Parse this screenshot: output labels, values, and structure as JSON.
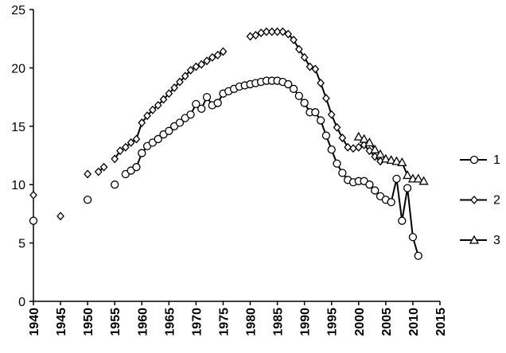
{
  "chart_data": {
    "type": "line",
    "x": [
      1940,
      1941,
      1942,
      1943,
      1944,
      1945,
      1946,
      1947,
      1948,
      1949,
      1950,
      1951,
      1952,
      1953,
      1954,
      1955,
      1956,
      1957,
      1958,
      1959,
      1960,
      1961,
      1962,
      1963,
      1964,
      1965,
      1966,
      1967,
      1968,
      1969,
      1970,
      1971,
      1972,
      1973,
      1974,
      1975,
      1976,
      1977,
      1978,
      1979,
      1980,
      1981,
      1982,
      1983,
      1984,
      1985,
      1986,
      1987,
      1988,
      1989,
      1990,
      1991,
      1992,
      1993,
      1994,
      1995,
      1996,
      1997,
      1998,
      1999,
      2000,
      2001,
      2002,
      2003,
      2004,
      2005,
      2006,
      2007,
      2008,
      2009,
      2010,
      2011,
      2012
    ],
    "series": [
      {
        "name": "1",
        "color": "#000000",
        "marker": "circle",
        "values": [
          6.9,
          null,
          null,
          null,
          null,
          null,
          null,
          null,
          null,
          null,
          8.7,
          null,
          null,
          null,
          null,
          10.0,
          null,
          10.9,
          11.2,
          11.5,
          12.7,
          13.3,
          13.6,
          13.9,
          14.3,
          14.6,
          15.0,
          15.3,
          15.7,
          16.0,
          16.9,
          16.5,
          17.5,
          16.8,
          17.0,
          17.8,
          18.0,
          18.2,
          18.4,
          18.5,
          18.6,
          18.7,
          18.8,
          18.9,
          18.9,
          18.9,
          18.8,
          18.6,
          18.2,
          17.6,
          17.0,
          16.2,
          16.2,
          15.5,
          14.2,
          13.0,
          11.8,
          11.0,
          10.4,
          10.2,
          10.3,
          10.3,
          10.0,
          9.5,
          9.0,
          8.7,
          8.5,
          10.5,
          6.9,
          9.7,
          5.5,
          3.9,
          null
        ]
      },
      {
        "name": "2",
        "color": "#000000",
        "marker": "diamond",
        "values": [
          9.1,
          null,
          null,
          null,
          null,
          7.3,
          null,
          null,
          null,
          null,
          10.9,
          null,
          11.1,
          11.5,
          null,
          12.2,
          12.9,
          13.2,
          13.6,
          13.9,
          15.3,
          15.9,
          16.4,
          16.8,
          17.3,
          17.8,
          18.3,
          18.8,
          19.3,
          19.8,
          20.1,
          20.3,
          20.6,
          20.9,
          21.1,
          21.4,
          null,
          null,
          null,
          null,
          22.7,
          22.8,
          23.0,
          23.1,
          23.1,
          23.1,
          23.1,
          22.9,
          22.4,
          21.6,
          20.9,
          20.1,
          19.9,
          18.7,
          17.4,
          16.0,
          14.9,
          14.0,
          13.2,
          13.1,
          13.2,
          13.4,
          12.9,
          12.4,
          12.0,
          null,
          null,
          null,
          null,
          null,
          null,
          null,
          null
        ]
      },
      {
        "name": "3",
        "color": "#000000",
        "marker": "triangle",
        "values": [
          null,
          null,
          null,
          null,
          null,
          null,
          null,
          null,
          null,
          null,
          null,
          null,
          null,
          null,
          null,
          null,
          null,
          null,
          null,
          null,
          null,
          null,
          null,
          null,
          null,
          null,
          null,
          null,
          null,
          null,
          null,
          null,
          null,
          null,
          null,
          null,
          null,
          null,
          null,
          null,
          null,
          null,
          null,
          null,
          null,
          null,
          null,
          null,
          null,
          null,
          null,
          null,
          null,
          null,
          null,
          null,
          null,
          null,
          null,
          null,
          14.1,
          13.9,
          13.6,
          13.0,
          12.6,
          12.2,
          12.1,
          12.0,
          11.9,
          10.8,
          10.5,
          10.5,
          10.3
        ]
      }
    ],
    "xlim": [
      1940,
      2015
    ],
    "xticks": [
      1940,
      1945,
      1950,
      1955,
      1960,
      1965,
      1970,
      1975,
      1980,
      1985,
      1990,
      1995,
      2000,
      2005,
      2010,
      2015
    ],
    "ylim": [
      0,
      25
    ],
    "yticks": [
      0,
      5,
      10,
      15,
      20,
      25
    ],
    "grid": false,
    "legend": "right"
  }
}
